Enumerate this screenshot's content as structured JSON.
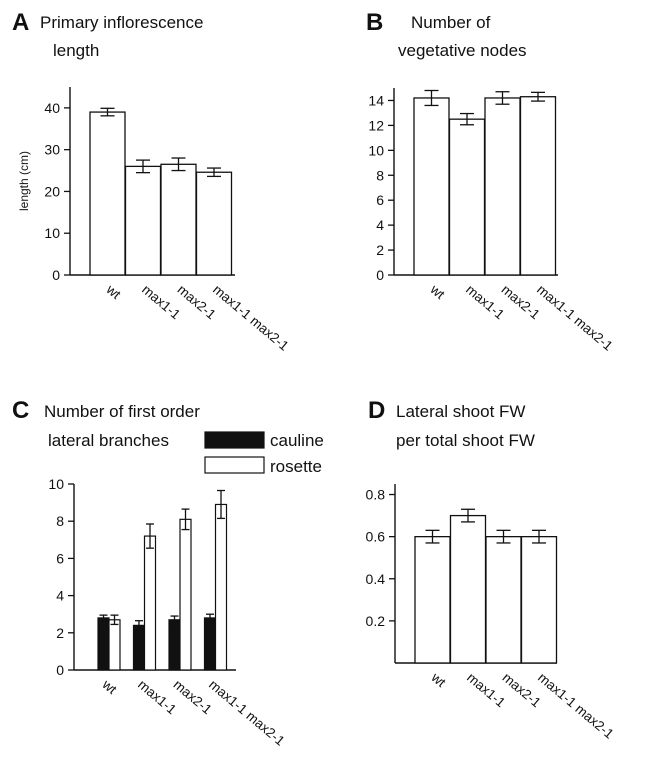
{
  "chart_data": [
    {
      "type": "bar",
      "panel": "A",
      "title_lines": [
        "Primary inflorescence",
        "length"
      ],
      "xlabel": "",
      "ylabel": "length (cm)",
      "ylim": [
        0,
        45
      ],
      "yticks": [
        "0",
        "10",
        "20",
        "30",
        "40"
      ],
      "categories": [
        "wt",
        "max1-1",
        "max2-1",
        "max1-1 max2-1"
      ],
      "values": [
        39.0,
        26.0,
        26.5,
        24.6
      ],
      "errors": [
        0.9,
        1.5,
        1.5,
        1.0
      ]
    },
    {
      "type": "bar",
      "panel": "B",
      "title_lines": [
        "Number of",
        "vegetative nodes"
      ],
      "xlabel": "",
      "ylabel": "",
      "ylim": [
        0,
        15
      ],
      "yticks": [
        "0",
        "2",
        "4",
        "6",
        "8",
        "10",
        "12",
        "14"
      ],
      "categories": [
        "wt",
        "max1-1",
        "max2-1",
        "max1-1 max2-1"
      ],
      "values": [
        14.2,
        12.5,
        14.2,
        14.3
      ],
      "errors": [
        0.6,
        0.45,
        0.5,
        0.35
      ]
    },
    {
      "type": "bar",
      "panel": "C",
      "title_lines": [
        "Number of first order",
        "lateral branches"
      ],
      "xlabel": "",
      "ylabel": "",
      "ylim": [
        0,
        10
      ],
      "yticks": [
        "0",
        "2",
        "4",
        "6",
        "8",
        "10"
      ],
      "categories": [
        "wt",
        "max1-1",
        "max2-1",
        "max1-1 max2-1"
      ],
      "legend": {
        "position": "top-right"
      },
      "series": [
        {
          "name": "cauline",
          "color": "#111111",
          "values": [
            2.8,
            2.4,
            2.7,
            2.8
          ],
          "errors": [
            0.15,
            0.25,
            0.2,
            0.2
          ]
        },
        {
          "name": "rosette",
          "color": "#ffffff",
          "values": [
            2.7,
            7.2,
            8.1,
            8.9
          ],
          "errors": [
            0.25,
            0.65,
            0.55,
            0.75
          ]
        }
      ]
    },
    {
      "type": "bar",
      "panel": "D",
      "title_lines": [
        "Lateral shoot FW",
        "per total shoot FW"
      ],
      "xlabel": "",
      "ylabel": "",
      "ylim": [
        0,
        0.85
      ],
      "yticks": [
        "0.2",
        "0.4",
        "0.6",
        "0.8"
      ],
      "categories": [
        "wt",
        "max1-1",
        "max2-1",
        "max1-1 max2-1"
      ],
      "values": [
        0.6,
        0.7,
        0.6,
        0.6
      ],
      "errors": [
        0.03,
        0.03,
        0.03,
        0.03
      ]
    }
  ]
}
